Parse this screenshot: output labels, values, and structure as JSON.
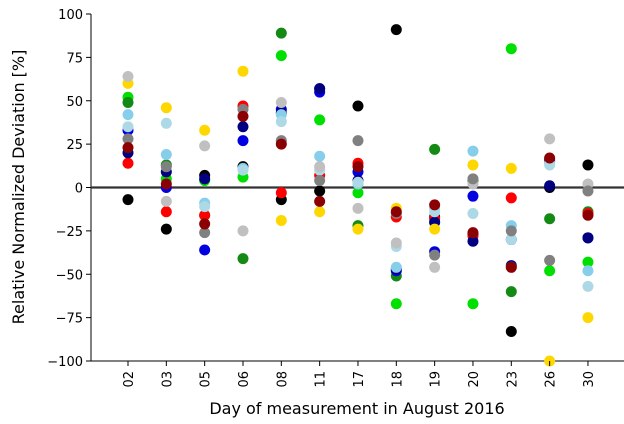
{
  "chart_data": {
    "type": "scatter",
    "title": "",
    "xlabel": "Day of measurement in August 2016",
    "ylabel": "Relative Normalized Deviation [%]",
    "ylim": [
      -100,
      100
    ],
    "yticks": [
      -100,
      -75,
      -50,
      -25,
      0,
      25,
      50,
      75,
      100
    ],
    "categories": [
      "02",
      "03",
      "05",
      "06",
      "08",
      "11",
      "17",
      "18",
      "19",
      "20",
      "23",
      "26",
      "30"
    ],
    "reference_line": {
      "y": 0,
      "color": "#333333"
    },
    "grid": false,
    "legend": "none",
    "series": [
      {
        "color": "#000000",
        "values": [
          -7,
          -24,
          7,
          12,
          -7,
          -2,
          47,
          91,
          -17,
          -27,
          -83,
          0,
          13
        ]
      },
      {
        "color": "#00E000",
        "values": [
          52,
          5,
          4,
          6,
          76,
          39,
          -3,
          -67,
          -20,
          -67,
          80,
          -48,
          -43
        ]
      },
      {
        "color": "#138A13",
        "values": [
          49,
          13,
          -16,
          -41,
          89,
          57,
          -22,
          -51,
          22,
          4,
          -60,
          -18,
          -14
        ]
      },
      {
        "color": "#FF0000",
        "values": [
          14,
          -14,
          -16,
          47,
          -3,
          7,
          14,
          -17,
          -18,
          -28,
          -6,
          15,
          -15
        ]
      },
      {
        "color": "#0000E0",
        "values": [
          33,
          0,
          -36,
          27,
          45,
          55,
          9,
          -48,
          -37,
          -5,
          -30,
          16,
          -29
        ]
      },
      {
        "color": "#000080",
        "values": [
          20,
          9,
          5,
          35,
          43,
          57,
          4,
          -47,
          -20,
          -31,
          -45,
          1,
          -29
        ]
      },
      {
        "color": "#87CEEB",
        "values": [
          42,
          19,
          -9,
          11,
          42,
          18,
          2,
          -46,
          -12,
          21,
          -22,
          14,
          -48
        ]
      },
      {
        "color": "#ADD8E6",
        "values": [
          35,
          37,
          -11,
          10,
          38,
          10,
          3,
          -34,
          -14,
          -15,
          -30,
          13,
          -57
        ]
      },
      {
        "color": "#FFD700",
        "values": [
          60,
          46,
          33,
          67,
          -19,
          -14,
          -24,
          -12,
          -24,
          13,
          11,
          -100,
          -75
        ]
      },
      {
        "color": "#C0C0C0",
        "values": [
          64,
          -8,
          24,
          -25,
          49,
          12,
          -12,
          -32,
          -46,
          2,
          -46,
          28,
          2
        ]
      },
      {
        "color": "#808080",
        "values": [
          28,
          12,
          -26,
          45,
          27,
          4,
          27,
          -15,
          -39,
          5,
          -25,
          -42,
          -2
        ]
      },
      {
        "color": "#8B0000",
        "values": [
          23,
          2,
          -21,
          41,
          25,
          -8,
          12,
          -14,
          -10,
          -26,
          -46,
          17,
          -16
        ]
      }
    ]
  }
}
